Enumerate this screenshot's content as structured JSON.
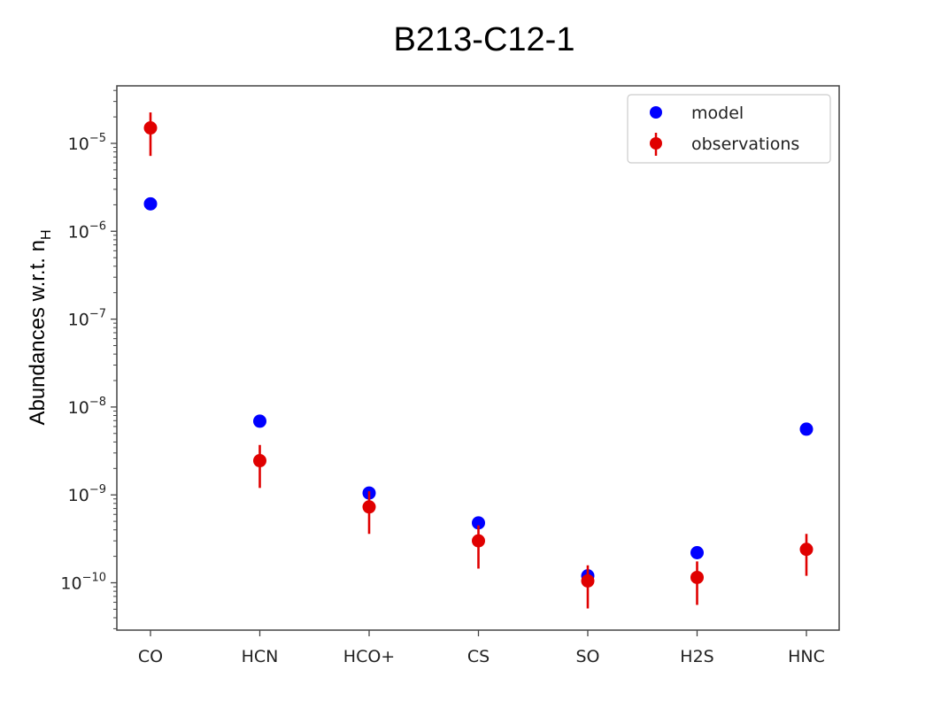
{
  "chart_data": {
    "type": "scatter",
    "title": "B213-C12-1",
    "xlabel": "",
    "ylabel": "Abundances w.r.t. n",
    "ylabel_subscript": "H",
    "yscale": "log",
    "ylim": [
      2.8e-11,
      4e-05
    ],
    "categories": [
      "CO",
      "HCN",
      "HCO+",
      "CS",
      "SO",
      "H2S",
      "HNC"
    ],
    "y_tick_labels": [
      {
        "base": "10",
        "exp": "−5",
        "value": 1e-05
      },
      {
        "base": "10",
        "exp": "−6",
        "value": 1e-06
      },
      {
        "base": "10",
        "exp": "−7",
        "value": 1e-07
      },
      {
        "base": "10",
        "exp": "−8",
        "value": 1e-08
      },
      {
        "base": "10",
        "exp": "−9",
        "value": 1e-09
      },
      {
        "base": "10",
        "exp": "−10",
        "value": 1e-10
      }
    ],
    "grid": false,
    "legend_position": "top-right",
    "series": [
      {
        "name": "model",
        "color": "#0000ff",
        "values": [
          2.05e-06,
          6.9e-09,
          1.05e-09,
          4.8e-10,
          1.2e-10,
          2.2e-10,
          5.6e-09
        ]
      },
      {
        "name": "observations",
        "color": "#e00000",
        "values": [
          1.5e-05,
          2.45e-09,
          7.3e-10,
          3e-10,
          1.05e-10,
          1.15e-10,
          2.4e-10
        ],
        "err_low": [
          7.2e-06,
          1.2e-09,
          3.6e-10,
          1.45e-10,
          5.1e-11,
          5.6e-11,
          1.2e-10
        ],
        "err_high": [
          2.25e-05,
          3.7e-09,
          1.1e-09,
          4.5e-10,
          1.58e-10,
          1.75e-10,
          3.6e-10
        ]
      }
    ]
  }
}
